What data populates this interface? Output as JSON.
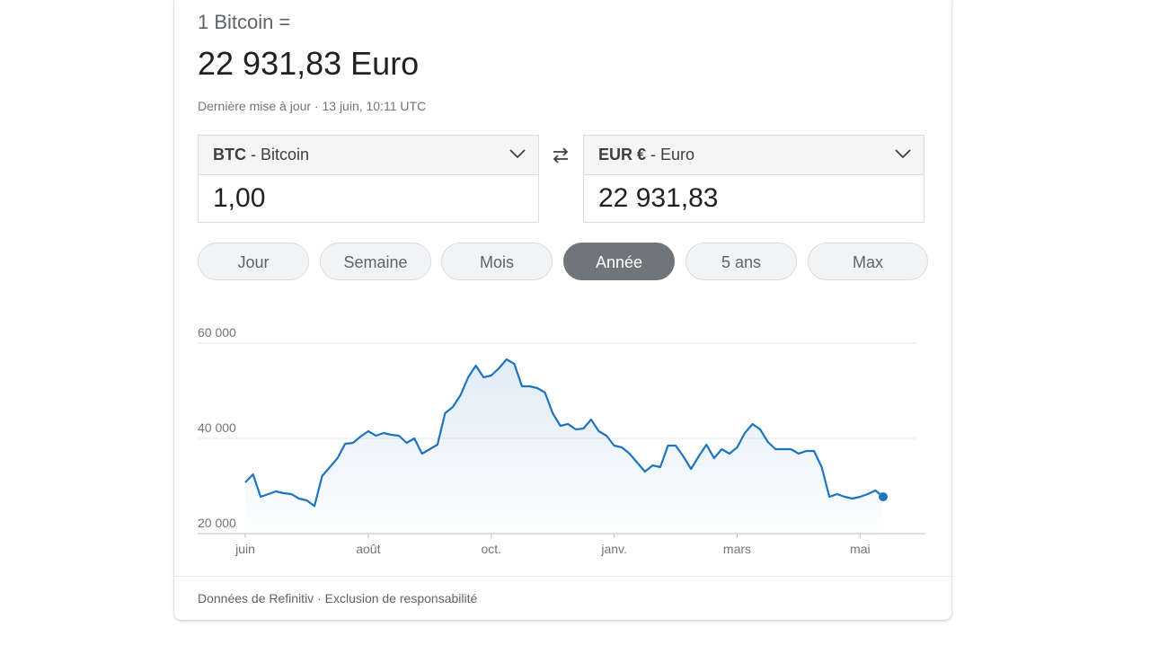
{
  "header": {
    "title": "1 Bitcoin =",
    "result": "22 931,83 Euro",
    "updated": "Dernière mise à jour · 13 juin, 10:11 UTC"
  },
  "converter": {
    "from": {
      "code": "BTC",
      "name": "- Bitcoin",
      "amount": "1,00"
    },
    "to": {
      "code": "EUR €",
      "name": "- Euro",
      "amount": "22 931,83"
    }
  },
  "ranges": {
    "items": [
      "Jour",
      "Semaine",
      "Mois",
      "Année",
      "5 ans",
      "Max"
    ],
    "selected": "Année"
  },
  "chart_data": {
    "type": "line",
    "color": "#1f74be",
    "grid": true,
    "categories": [
      "juin",
      null,
      null,
      null,
      null,
      null,
      null,
      null,
      null,
      null,
      null,
      null,
      null,
      null,
      null,
      null,
      "août",
      null,
      null,
      null,
      null,
      null,
      null,
      null,
      null,
      null,
      null,
      null,
      null,
      null,
      null,
      null,
      "oct.",
      null,
      null,
      null,
      null,
      null,
      null,
      null,
      null,
      null,
      null,
      null,
      null,
      null,
      null,
      null,
      "janv.",
      null,
      null,
      null,
      null,
      null,
      null,
      null,
      null,
      null,
      null,
      null,
      null,
      null,
      null,
      null,
      "mars",
      null,
      null,
      null,
      null,
      null,
      null,
      null,
      null,
      null,
      null,
      null,
      null,
      null,
      null,
      null,
      "mai",
      null,
      null,
      null
    ],
    "values": [
      30760,
      32450,
      27740,
      28300,
      28870,
      28490,
      28300,
      27360,
      26980,
      25800,
      32080,
      33960,
      35850,
      38870,
      39060,
      40380,
      41510,
      40570,
      41130,
      40760,
      40570,
      39060,
      40000,
      36790,
      37740,
      38680,
      45290,
      46610,
      49060,
      52830,
      55290,
      52830,
      53210,
      54720,
      56610,
      55660,
      50950,
      50950,
      50570,
      49630,
      45290,
      42640,
      43020,
      41890,
      42080,
      43960,
      41510,
      40570,
      38490,
      38120,
      36790,
      34910,
      33020,
      34340,
      33960,
      38490,
      38490,
      36230,
      33590,
      36230,
      38680,
      35850,
      37740,
      36790,
      38120,
      41130,
      43020,
      41890,
      39250,
      37740,
      37740,
      37740,
      36790,
      37360,
      37360,
      33960,
      27740,
      28300,
      27740,
      27360,
      27740,
      28300,
      29060,
      27740
    ],
    "ylim": [
      20000,
      60000
    ],
    "yticks": [
      {
        "value": 20000,
        "label": "20 000"
      },
      {
        "value": 40000,
        "label": "40 000"
      },
      {
        "value": 60000,
        "label": "60 000"
      }
    ]
  },
  "footer": {
    "source": "Données de Refinitiv · Exclusion de responsabilité"
  }
}
